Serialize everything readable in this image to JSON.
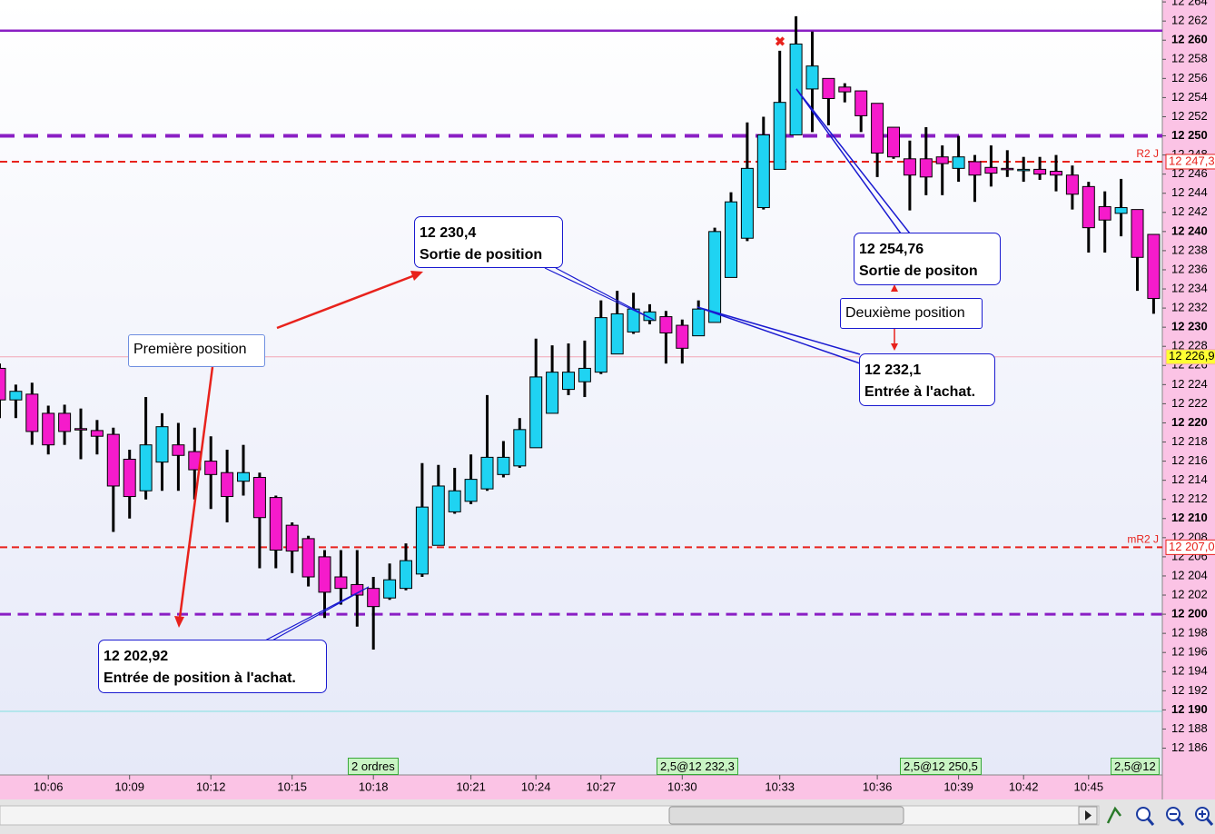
{
  "chart_data": {
    "type": "candlestick",
    "categories": [
      null,
      null,
      null,
      "10:06",
      null,
      null,
      null,
      null,
      "10:09",
      null,
      null,
      null,
      null,
      "10:12",
      null,
      null,
      null,
      null,
      "10:15",
      null,
      null,
      null,
      null,
      "10:18",
      null,
      null,
      null,
      null,
      null,
      "10:21",
      null,
      null,
      null,
      "10:24",
      null,
      null,
      null,
      "10:27",
      null,
      null,
      null,
      null,
      "10:30",
      null,
      null,
      null,
      null,
      null,
      "10:33",
      null,
      null,
      null,
      null,
      null,
      "10:36",
      null,
      null,
      null,
      null,
      "10:39",
      null,
      null,
      null,
      "10:42",
      null,
      null,
      null,
      "10:45",
      null,
      null,
      null,
      null
    ],
    "open": [
      12225.7,
      12222.4,
      12223.0,
      12221.0,
      12221.0,
      12219.4,
      12219.2,
      12218.8,
      12216.2,
      12212.9,
      12215.9,
      12217.7,
      12217.0,
      12216.0,
      12214.8,
      12213.9,
      12214.3,
      12212.2,
      12209.3,
      12207.9,
      12206.0,
      12203.9,
      12203.1,
      12202.7,
      12201.7,
      12202.7,
      12204.2,
      12207.2,
      12210.7,
      12211.8,
      12213.1,
      12214.6,
      12215.5,
      12217.4,
      12221.0,
      12223.5,
      12224.3,
      12225.3,
      12227.2,
      12229.5,
      12230.7,
      12231.1,
      12230.2,
      12229.1,
      12230.5,
      12235.2,
      12239.3,
      12242.5,
      12246.5,
      12250.1,
      12254.9,
      12256.0,
      12255.1,
      12254.7,
      12253.4,
      12250.9,
      12247.6,
      12247.6,
      12247.8,
      12246.6,
      12247.3,
      12246.7,
      12246.6,
      12246.5,
      12246.5,
      12246.3,
      12245.9,
      12244.7,
      12242.6,
      12241.9,
      12242.3,
      12239.7
    ],
    "high": [
      12226.2,
      12224.0,
      12224.2,
      12221.8,
      12221.9,
      12221.5,
      12220.3,
      12219.5,
      12217.2,
      12222.7,
      12221.0,
      12220.0,
      12219.5,
      12218.6,
      12217.2,
      12217.7,
      12214.8,
      12212.4,
      12209.6,
      12208.2,
      12206.7,
      12206.7,
      12206.7,
      12203.9,
      12205.3,
      12207.4,
      12215.8,
      12215.6,
      12215.3,
      12216.7,
      12222.9,
      12218.1,
      12220.5,
      12228.8,
      12228.1,
      12228.3,
      12228.6,
      12232.8,
      12233.8,
      12233.6,
      12232.4,
      12231.7,
      12230.8,
      12232.8,
      12240.4,
      12244.1,
      12251.4,
      12252.0,
      12258.9,
      12262.5,
      12260.9,
      12256.0,
      12255.5,
      12254.7,
      12253.4,
      12250.9,
      12249.5,
      12250.9,
      12249.0,
      12250.0,
      12248.0,
      12249.0,
      12248.5,
      12247.8,
      12247.8,
      12248.0,
      12246.9,
      12245.2,
      12244.2,
      12245.5,
      12242.3,
      12239.7
    ],
    "low": [
      12220.5,
      12220.5,
      12217.7,
      12216.7,
      12217.7,
      12216.2,
      12216.7,
      12208.6,
      12210.0,
      12212.0,
      12212.9,
      12212.9,
      12212.0,
      12211.0,
      12209.6,
      12212.4,
      12204.8,
      12204.8,
      12204.3,
      12202.9,
      12199.6,
      12201.0,
      12198.7,
      12196.3,
      12201.5,
      12202.5,
      12203.9,
      12207.2,
      12210.5,
      12211.5,
      12212.9,
      12214.3,
      12215.3,
      12217.4,
      12221.0,
      12222.9,
      12222.7,
      12225.1,
      12227.2,
      12229.3,
      12230.3,
      12226.2,
      12226.2,
      12229.1,
      12230.5,
      12235.2,
      12239.0,
      12242.3,
      12246.5,
      12250.1,
      12250.4,
      12251.1,
      12253.5,
      12250.4,
      12245.7,
      12247.6,
      12242.2,
      12243.8,
      12243.8,
      12245.2,
      12243.1,
      12244.7,
      12245.7,
      12245.2,
      12245.4,
      12244.2,
      12242.3,
      12237.8,
      12237.8,
      12239.5,
      12233.8,
      12231.4
    ],
    "close": [
      12222.4,
      12223.3,
      12219.1,
      12217.7,
      12219.1,
      12219.3,
      12218.6,
      12213.4,
      12212.3,
      12217.7,
      12219.6,
      12216.6,
      12215.1,
      12214.6,
      12212.3,
      12214.8,
      12210.1,
      12206.7,
      12206.6,
      12203.9,
      12202.3,
      12202.7,
      12202.0,
      12200.8,
      12203.6,
      12205.6,
      12211.2,
      12213.4,
      12212.9,
      12214.1,
      12216.4,
      12216.4,
      12219.3,
      12224.8,
      12225.3,
      12225.3,
      12225.7,
      12231.0,
      12231.4,
      12231.9,
      12231.6,
      12229.4,
      12227.8,
      12231.9,
      12240.0,
      12243.1,
      12246.6,
      12250.1,
      12253.5,
      12259.6,
      12257.3,
      12253.9,
      12254.6,
      12252.1,
      12248.2,
      12247.8,
      12245.9,
      12245.7,
      12247.1,
      12247.8,
      12245.9,
      12246.1,
      12246.5,
      12246.5,
      12246.0,
      12245.9,
      12243.9,
      12240.4,
      12241.2,
      12242.5,
      12237.3,
      12233.0
    ],
    "up_color": "#1fd3f2",
    "down_color": "#f51bcb",
    "ylim": [
      12183.2,
      12264.2
    ],
    "yticks": [
      {
        "value": 12186,
        "label": "12 186"
      },
      {
        "value": 12188,
        "label": "12 188"
      },
      {
        "value": 12190,
        "label": "12 190"
      },
      {
        "value": 12192,
        "label": "12 192"
      },
      {
        "value": 12194,
        "label": "12 194"
      },
      {
        "value": 12196,
        "label": "12 196"
      },
      {
        "value": 12198,
        "label": "12 198"
      },
      {
        "value": 12200,
        "label": "12 200"
      },
      {
        "value": 12202,
        "label": "12 202"
      },
      {
        "value": 12204,
        "label": "12 204"
      },
      {
        "value": 12206,
        "label": "12 206"
      },
      {
        "value": 12208,
        "label": "12 208"
      },
      {
        "value": 12210,
        "label": "12 210"
      },
      {
        "value": 12212,
        "label": "12 212"
      },
      {
        "value": 12214,
        "label": "12 214"
      },
      {
        "value": 12216,
        "label": "12 216"
      },
      {
        "value": 12218,
        "label": "12 218"
      },
      {
        "value": 12220,
        "label": "12 220"
      },
      {
        "value": 12222,
        "label": "12 222"
      },
      {
        "value": 12224,
        "label": "12 224"
      },
      {
        "value": 12226,
        "label": "12 226"
      },
      {
        "value": 12228,
        "label": "12 228"
      },
      {
        "value": 12230,
        "label": "12 230"
      },
      {
        "value": 12232,
        "label": "12 232"
      },
      {
        "value": 12234,
        "label": "12 234"
      },
      {
        "value": 12236,
        "label": "12 236"
      },
      {
        "value": 12238,
        "label": "12 238"
      },
      {
        "value": 12240,
        "label": "12 240"
      },
      {
        "value": 12242,
        "label": "12 242"
      },
      {
        "value": 12244,
        "label": "12 244"
      },
      {
        "value": 12246,
        "label": "12 246"
      },
      {
        "value": 12248,
        "label": "12 248"
      },
      {
        "value": 12250,
        "label": "12 250"
      },
      {
        "value": 12252,
        "label": "12 252"
      },
      {
        "value": 12254,
        "label": "12 254"
      },
      {
        "value": 12256,
        "label": "12 256"
      },
      {
        "value": 12258,
        "label": "12 258"
      },
      {
        "value": 12260,
        "label": "12 260"
      },
      {
        "value": 12262,
        "label": "12 262"
      },
      {
        "value": 12264,
        "label": "12 264"
      }
    ],
    "levels": [
      {
        "value": 12261,
        "color": "#8a1fc4",
        "style": "solid",
        "width": 2.5
      },
      {
        "value": 12250,
        "color": "#8a1fc4",
        "style": "dashed",
        "width": 4
      },
      {
        "value": 12247.3,
        "color": "#e8221c",
        "style": "dashed",
        "width": 2,
        "label": "R2 J",
        "price_label": "12 247,3",
        "label_bg": "#ffffff"
      },
      {
        "value": 12226.9,
        "color": "#f3a6b6",
        "style": "solid",
        "width": 1,
        "price_label": "12 226,9",
        "label_bg": "#ffff33"
      },
      {
        "value": 12207.0,
        "color": "#e8221c",
        "style": "dashed",
        "width": 2,
        "label": "mR2 J",
        "price_label": "12 207,0",
        "label_bg": "#ffffff"
      },
      {
        "value": 12200,
        "color": "#8a1fc4",
        "style": "dashed",
        "width": 3
      }
    ],
    "annotations": [
      {
        "price": "12 230,4",
        "text": "Sortie de position"
      },
      {
        "price": "12 254,76",
        "text": "Sortie de positon"
      },
      {
        "text": "Deuxième position"
      },
      {
        "price": "12 232,1",
        "text": "Entrée à l'achat."
      },
      {
        "text": "Première position"
      },
      {
        "price": "12 202,92",
        "text": "Entrée de position à l'achat."
      }
    ],
    "orders": [
      "2 ordres",
      "2,5@12 232,3",
      "2,5@12 250,5",
      "2,5@12"
    ]
  }
}
